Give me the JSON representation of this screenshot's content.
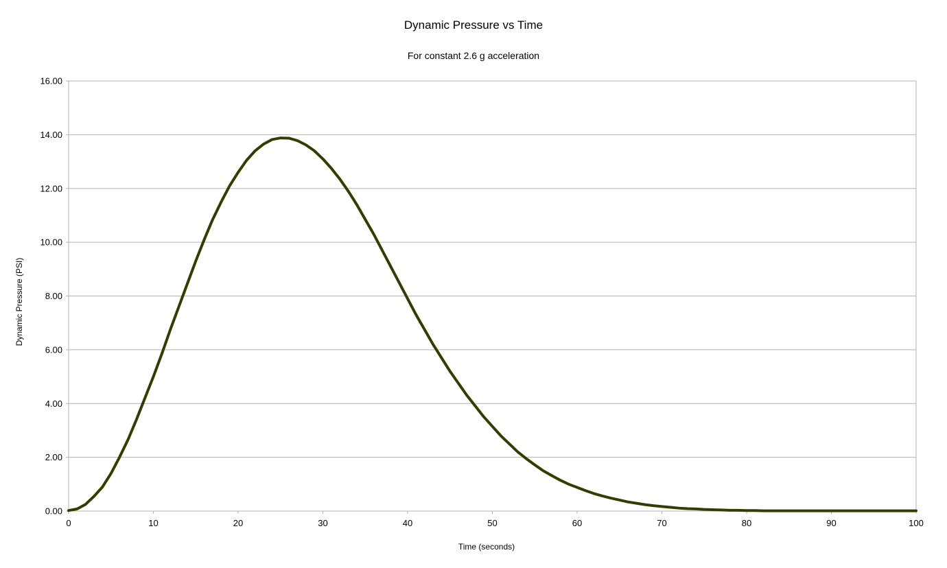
{
  "chart_data": {
    "type": "line",
    "title": "Dynamic Pressure vs Time",
    "subtitle": "For constant 2.6 g acceleration",
    "xlabel": "Time (seconds)",
    "ylabel": "Dynamic Pressure (PSI)",
    "xlim": [
      0,
      100
    ],
    "ylim": [
      0,
      16
    ],
    "x_ticks": [
      "0",
      "10",
      "20",
      "30",
      "40",
      "50",
      "60",
      "70",
      "80",
      "90",
      "100"
    ],
    "y_ticks": [
      "0.00",
      "2.00",
      "4.00",
      "6.00",
      "8.00",
      "10.00",
      "12.00",
      "14.00",
      "16.00"
    ],
    "grid": "horizontal",
    "legend": "none",
    "series": [
      {
        "color": "#333d00",
        "x": [
          0,
          1,
          2,
          3,
          4,
          5,
          6,
          7,
          8,
          9,
          10,
          11,
          12,
          13,
          14,
          15,
          16,
          17,
          18,
          19,
          20,
          21,
          22,
          23,
          24,
          25,
          26,
          27,
          28,
          29,
          30,
          31,
          32,
          33,
          34,
          35,
          36,
          37,
          38,
          39,
          40,
          41,
          42,
          43,
          44,
          45,
          46,
          47,
          48,
          49,
          50,
          51,
          52,
          53,
          54,
          55,
          56,
          57,
          58,
          59,
          60,
          61,
          62,
          63,
          64,
          65,
          66,
          67,
          68,
          69,
          70,
          71,
          72,
          73,
          74,
          75,
          76,
          77,
          78,
          79,
          80,
          81,
          82,
          83,
          84,
          85,
          86,
          87,
          88,
          89,
          90,
          91,
          92,
          93,
          94,
          95,
          96,
          97,
          98,
          99,
          100
        ],
        "values": [
          0.02,
          0.08,
          0.25,
          0.55,
          0.9,
          1.4,
          2.0,
          2.65,
          3.4,
          4.2,
          5.0,
          5.85,
          6.75,
          7.6,
          8.45,
          9.3,
          10.1,
          10.85,
          11.5,
          12.1,
          12.6,
          13.05,
          13.4,
          13.65,
          13.82,
          13.88,
          13.87,
          13.78,
          13.62,
          13.4,
          13.1,
          12.75,
          12.35,
          11.9,
          11.4,
          10.85,
          10.3,
          9.7,
          9.1,
          8.5,
          7.9,
          7.3,
          6.75,
          6.2,
          5.7,
          5.2,
          4.75,
          4.3,
          3.9,
          3.5,
          3.15,
          2.8,
          2.5,
          2.2,
          1.95,
          1.72,
          1.5,
          1.32,
          1.15,
          1.0,
          0.88,
          0.76,
          0.65,
          0.56,
          0.48,
          0.41,
          0.34,
          0.29,
          0.24,
          0.2,
          0.17,
          0.14,
          0.11,
          0.09,
          0.08,
          0.06,
          0.05,
          0.04,
          0.03,
          0.03,
          0.02,
          0.02,
          0.01,
          0.01,
          0.01,
          0.01,
          0.01,
          0.01,
          0.01,
          0.01,
          0.01,
          0.01,
          0.01,
          0.01,
          0.01,
          0.01,
          0.01,
          0.01,
          0.01,
          0.01,
          0.01
        ]
      }
    ]
  }
}
